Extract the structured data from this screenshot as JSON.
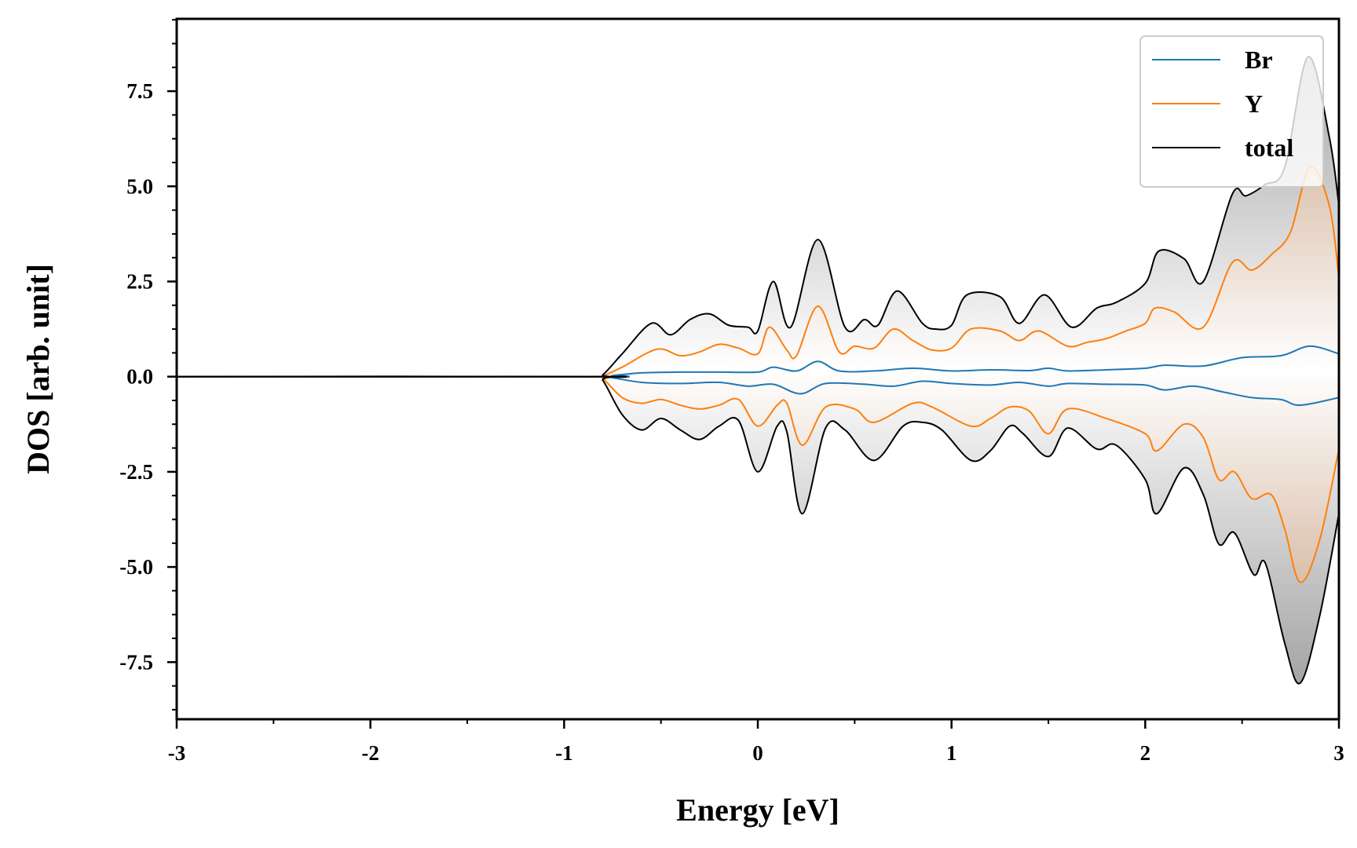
{
  "chart_data": {
    "type": "line",
    "title": "",
    "xlabel": "Energy [eV]",
    "ylabel": "DOS [arb. unit]",
    "xlim": [
      -3,
      3
    ],
    "ylim": [
      -9.0,
      9.4
    ],
    "x_ticks": [
      -3,
      -2,
      -1,
      0,
      1,
      2,
      3
    ],
    "x_tick_labels": [
      "-3",
      "-2",
      "-1",
      "0",
      "1",
      "2",
      "3"
    ],
    "x_minor_ticks": [
      -2.5,
      -1.5,
      -0.5,
      0.5,
      1.5,
      2.5
    ],
    "y_ticks": [
      -7.5,
      -5.0,
      -2.5,
      0.0,
      2.5,
      5.0,
      7.5
    ],
    "y_tick_labels": [
      "-7.5",
      "-5.0",
      "-2.5",
      "0.0",
      "2.5",
      "5.0",
      "7.5"
    ],
    "y_minor_step": 0.625,
    "legend_position": "top-right",
    "fill_gradient": {
      "center_color": "#ffffff",
      "edge_color": "#9a9a9a",
      "y_fill_edge_color": "#c8956c"
    },
    "series": [
      {
        "name": "Br",
        "color": "#1f77b4",
        "up": [
          [
            -3,
            0
          ],
          [
            -0.85,
            0
          ],
          [
            -0.75,
            0.03
          ],
          [
            -0.6,
            0.1
          ],
          [
            -0.4,
            0.12
          ],
          [
            -0.2,
            0.12
          ],
          [
            0,
            0.12
          ],
          [
            0.08,
            0.25
          ],
          [
            0.2,
            0.15
          ],
          [
            0.31,
            0.4
          ],
          [
            0.42,
            0.15
          ],
          [
            0.6,
            0.15
          ],
          [
            0.8,
            0.22
          ],
          [
            1.0,
            0.15
          ],
          [
            1.2,
            0.18
          ],
          [
            1.4,
            0.16
          ],
          [
            1.5,
            0.22
          ],
          [
            1.6,
            0.15
          ],
          [
            1.8,
            0.18
          ],
          [
            2.0,
            0.22
          ],
          [
            2.1,
            0.3
          ],
          [
            2.3,
            0.28
          ],
          [
            2.5,
            0.5
          ],
          [
            2.7,
            0.55
          ],
          [
            2.85,
            0.8
          ],
          [
            3,
            0.6
          ]
        ],
        "down": [
          [
            -3,
            0
          ],
          [
            -0.85,
            0
          ],
          [
            -0.75,
            -0.03
          ],
          [
            -0.6,
            -0.15
          ],
          [
            -0.4,
            -0.18
          ],
          [
            -0.2,
            -0.15
          ],
          [
            -0.05,
            -0.25
          ],
          [
            0.08,
            -0.2
          ],
          [
            0.22,
            -0.45
          ],
          [
            0.35,
            -0.18
          ],
          [
            0.55,
            -0.2
          ],
          [
            0.7,
            -0.25
          ],
          [
            0.85,
            -0.12
          ],
          [
            1.0,
            -0.18
          ],
          [
            1.2,
            -0.22
          ],
          [
            1.35,
            -0.15
          ],
          [
            1.5,
            -0.25
          ],
          [
            1.6,
            -0.18
          ],
          [
            1.8,
            -0.2
          ],
          [
            2.0,
            -0.22
          ],
          [
            2.1,
            -0.35
          ],
          [
            2.25,
            -0.25
          ],
          [
            2.4,
            -0.4
          ],
          [
            2.55,
            -0.55
          ],
          [
            2.7,
            -0.6
          ],
          [
            2.8,
            -0.75
          ],
          [
            3,
            -0.55
          ]
        ]
      },
      {
        "name": "Y",
        "color": "#ff7f0e",
        "up": [
          [
            -3,
            0
          ],
          [
            -0.85,
            0
          ],
          [
            -0.8,
            0.02
          ],
          [
            -0.7,
            0.25
          ],
          [
            -0.52,
            0.72
          ],
          [
            -0.4,
            0.55
          ],
          [
            -0.3,
            0.65
          ],
          [
            -0.2,
            0.85
          ],
          [
            -0.1,
            0.75
          ],
          [
            0,
            0.6
          ],
          [
            0.06,
            1.3
          ],
          [
            0.15,
            0.7
          ],
          [
            0.2,
            0.55
          ],
          [
            0.31,
            1.85
          ],
          [
            0.42,
            0.65
          ],
          [
            0.5,
            0.8
          ],
          [
            0.6,
            0.75
          ],
          [
            0.7,
            1.25
          ],
          [
            0.8,
            0.95
          ],
          [
            0.9,
            0.7
          ],
          [
            1.0,
            0.75
          ],
          [
            1.1,
            1.25
          ],
          [
            1.25,
            1.2
          ],
          [
            1.35,
            0.95
          ],
          [
            1.45,
            1.2
          ],
          [
            1.6,
            0.8
          ],
          [
            1.7,
            0.9
          ],
          [
            1.8,
            1.0
          ],
          [
            1.9,
            1.2
          ],
          [
            2.0,
            1.4
          ],
          [
            2.05,
            1.8
          ],
          [
            2.15,
            1.7
          ],
          [
            2.3,
            1.3
          ],
          [
            2.45,
            3.0
          ],
          [
            2.55,
            2.8
          ],
          [
            2.65,
            3.2
          ],
          [
            2.75,
            3.8
          ],
          [
            2.85,
            5.5
          ],
          [
            2.95,
            4.5
          ],
          [
            3,
            2.6
          ]
        ],
        "down": [
          [
            -3,
            0
          ],
          [
            -0.85,
            0
          ],
          [
            -0.8,
            -0.05
          ],
          [
            -0.7,
            -0.55
          ],
          [
            -0.6,
            -0.7
          ],
          [
            -0.5,
            -0.6
          ],
          [
            -0.4,
            -0.75
          ],
          [
            -0.3,
            -0.85
          ],
          [
            -0.2,
            -0.75
          ],
          [
            -0.1,
            -0.6
          ],
          [
            0,
            -1.3
          ],
          [
            0.1,
            -0.75
          ],
          [
            0.15,
            -0.7
          ],
          [
            0.23,
            -1.8
          ],
          [
            0.35,
            -0.8
          ],
          [
            0.5,
            -0.85
          ],
          [
            0.6,
            -1.2
          ],
          [
            0.8,
            -0.7
          ],
          [
            0.9,
            -0.8
          ],
          [
            1.1,
            -1.3
          ],
          [
            1.2,
            -1.1
          ],
          [
            1.3,
            -0.8
          ],
          [
            1.4,
            -0.9
          ],
          [
            1.5,
            -1.5
          ],
          [
            1.6,
            -0.85
          ],
          [
            1.8,
            -1.1
          ],
          [
            2.0,
            -1.5
          ],
          [
            2.06,
            -1.95
          ],
          [
            2.2,
            -1.25
          ],
          [
            2.3,
            -1.6
          ],
          [
            2.38,
            -2.7
          ],
          [
            2.46,
            -2.5
          ],
          [
            2.55,
            -3.2
          ],
          [
            2.65,
            -3.1
          ],
          [
            2.72,
            -4.0
          ],
          [
            2.8,
            -5.4
          ],
          [
            2.9,
            -4.3
          ],
          [
            3,
            -1.9
          ]
        ]
      },
      {
        "name": "total",
        "color": "#000000",
        "up": [
          [
            -3,
            0
          ],
          [
            -0.85,
            0
          ],
          [
            -0.8,
            0.05
          ],
          [
            -0.7,
            0.6
          ],
          [
            -0.55,
            1.4
          ],
          [
            -0.45,
            1.1
          ],
          [
            -0.35,
            1.5
          ],
          [
            -0.25,
            1.65
          ],
          [
            -0.15,
            1.35
          ],
          [
            -0.05,
            1.3
          ],
          [
            0,
            1.2
          ],
          [
            0.08,
            2.5
          ],
          [
            0.17,
            1.3
          ],
          [
            0.31,
            3.6
          ],
          [
            0.45,
            1.3
          ],
          [
            0.55,
            1.5
          ],
          [
            0.62,
            1.35
          ],
          [
            0.72,
            2.25
          ],
          [
            0.85,
            1.4
          ],
          [
            0.92,
            1.25
          ],
          [
            1.0,
            1.35
          ],
          [
            1.08,
            2.15
          ],
          [
            1.25,
            2.1
          ],
          [
            1.35,
            1.4
          ],
          [
            1.48,
            2.15
          ],
          [
            1.62,
            1.3
          ],
          [
            1.75,
            1.8
          ],
          [
            1.85,
            1.95
          ],
          [
            2.0,
            2.45
          ],
          [
            2.07,
            3.3
          ],
          [
            2.2,
            3.1
          ],
          [
            2.3,
            2.5
          ],
          [
            2.45,
            4.8
          ],
          [
            2.52,
            4.75
          ],
          [
            2.62,
            5.05
          ],
          [
            2.72,
            5.5
          ],
          [
            2.84,
            8.4
          ],
          [
            2.95,
            6.3
          ],
          [
            3,
            4.5
          ]
        ],
        "down": [
          [
            -3,
            0
          ],
          [
            -0.85,
            0
          ],
          [
            -0.8,
            -0.1
          ],
          [
            -0.7,
            -1.0
          ],
          [
            -0.6,
            -1.4
          ],
          [
            -0.5,
            -1.1
          ],
          [
            -0.4,
            -1.4
          ],
          [
            -0.3,
            -1.65
          ],
          [
            -0.2,
            -1.3
          ],
          [
            -0.1,
            -1.15
          ],
          [
            0,
            -2.5
          ],
          [
            0.1,
            -1.3
          ],
          [
            0.15,
            -1.45
          ],
          [
            0.23,
            -3.6
          ],
          [
            0.35,
            -1.35
          ],
          [
            0.45,
            -1.4
          ],
          [
            0.6,
            -2.2
          ],
          [
            0.75,
            -1.3
          ],
          [
            0.85,
            -1.2
          ],
          [
            0.95,
            -1.4
          ],
          [
            1.1,
            -2.2
          ],
          [
            1.2,
            -1.95
          ],
          [
            1.3,
            -1.3
          ],
          [
            1.37,
            -1.5
          ],
          [
            1.5,
            -2.1
          ],
          [
            1.6,
            -1.35
          ],
          [
            1.75,
            -1.9
          ],
          [
            1.85,
            -1.8
          ],
          [
            2.0,
            -2.7
          ],
          [
            2.06,
            -3.6
          ],
          [
            2.2,
            -2.4
          ],
          [
            2.3,
            -3.1
          ],
          [
            2.38,
            -4.4
          ],
          [
            2.46,
            -4.1
          ],
          [
            2.56,
            -5.2
          ],
          [
            2.62,
            -4.9
          ],
          [
            2.72,
            -7.0
          ],
          [
            2.8,
            -8.05
          ],
          [
            2.9,
            -6.3
          ],
          [
            3,
            -3.6
          ]
        ]
      }
    ]
  }
}
